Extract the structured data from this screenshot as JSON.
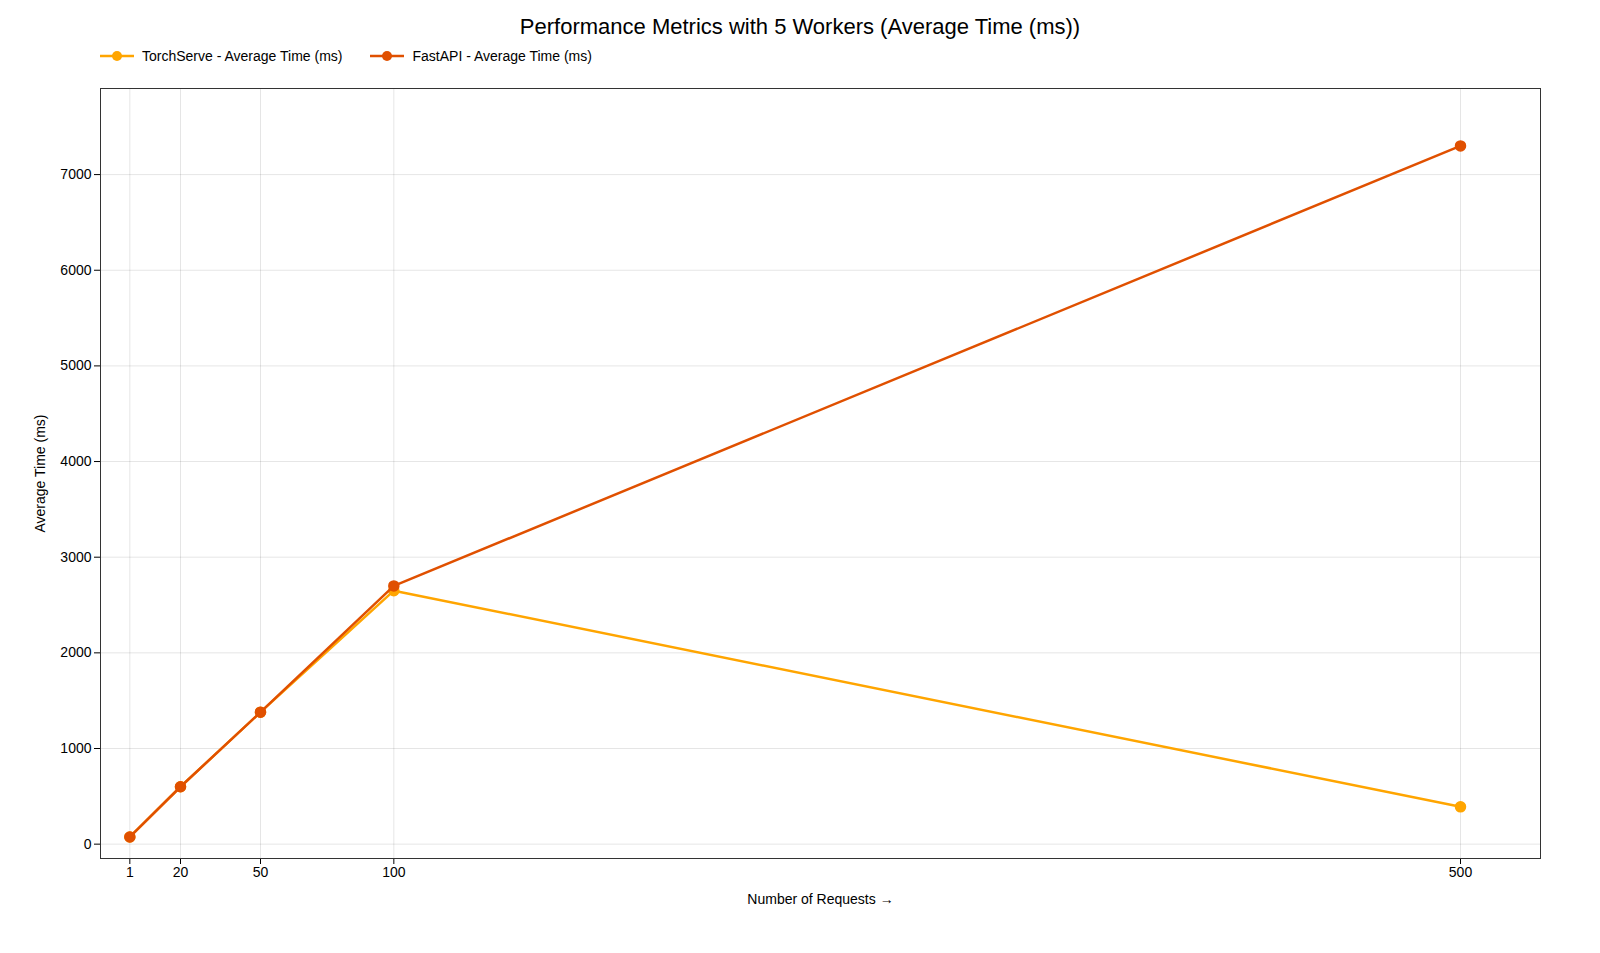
{
  "chart_data": {
    "type": "line",
    "title": "Performance Metrics with 5 Workers (Average Time (ms))",
    "xlabel": "Number of Requests",
    "ylabel": "Average Time (ms)",
    "x": [
      1,
      20,
      50,
      100,
      500
    ],
    "series": [
      {
        "name": "TorchServe - Average Time (ms)",
        "color": "#FFA500",
        "values": [
          75,
          600,
          1380,
          2650,
          390
        ]
      },
      {
        "name": "FastAPI - Average Time (ms)",
        "color": "#E05000",
        "values": [
          75,
          600,
          1380,
          2700,
          7300
        ]
      }
    ],
    "xlim": [
      -10,
      530
    ],
    "ylim": [
      -150,
      7900
    ],
    "xticks": [
      1,
      20,
      50,
      100,
      500
    ],
    "yticks": [
      0,
      1000,
      2000,
      3000,
      4000,
      5000,
      6000,
      7000
    ],
    "grid": true,
    "legend": "upper left",
    "marker": "circle"
  }
}
